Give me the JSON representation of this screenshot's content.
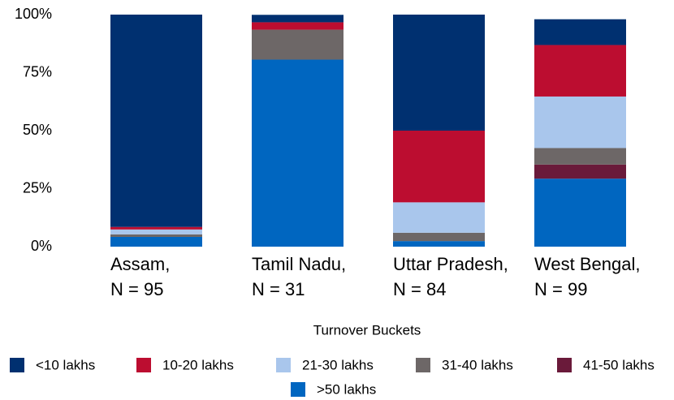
{
  "chart_data": {
    "type": "stacked_bar",
    "categories": [
      "Assam,\nN = 95",
      "Tamil Nadu,\nN = 31",
      "Uttar Pradesh,\nN = 84",
      "West Bengal,\nN = 99"
    ],
    "series": [
      {
        "name": "<10 lakhs",
        "color": "#003070",
        "values": [
          91.5,
          3.2,
          50.0,
          11.1
        ]
      },
      {
        "name": "10-20 lakhs",
        "color": "#bc0d30",
        "values": [
          1.1,
          3.2,
          30.9,
          22.2
        ]
      },
      {
        "name": "21-30 lakhs",
        "color": "#a9c6ec",
        "values": [
          2.1,
          0,
          13.1,
          22.2
        ]
      },
      {
        "name": "31-40 lakhs",
        "color": "#6d6767",
        "values": [
          1.1,
          12.9,
          3.6,
          7.1
        ]
      },
      {
        "name": "41-50 lakhs",
        "color": "#6a1a3a",
        "values": [
          0,
          0,
          0,
          6.1
        ]
      },
      {
        "name": ">50 lakhs",
        "color": "#0066c0",
        "values": [
          4.2,
          80.6,
          2.4,
          29.3
        ]
      }
    ],
    "legend_title": "Turnover Buckets",
    "ylim": [
      0,
      100
    ],
    "yticks": [
      {
        "value": 0,
        "label": "0%"
      },
      {
        "value": 25,
        "label": "25%"
      },
      {
        "value": 50,
        "label": "50%"
      },
      {
        "value": 75,
        "label": "75%"
      },
      {
        "value": 100,
        "label": "100%"
      }
    ],
    "grid": false
  }
}
